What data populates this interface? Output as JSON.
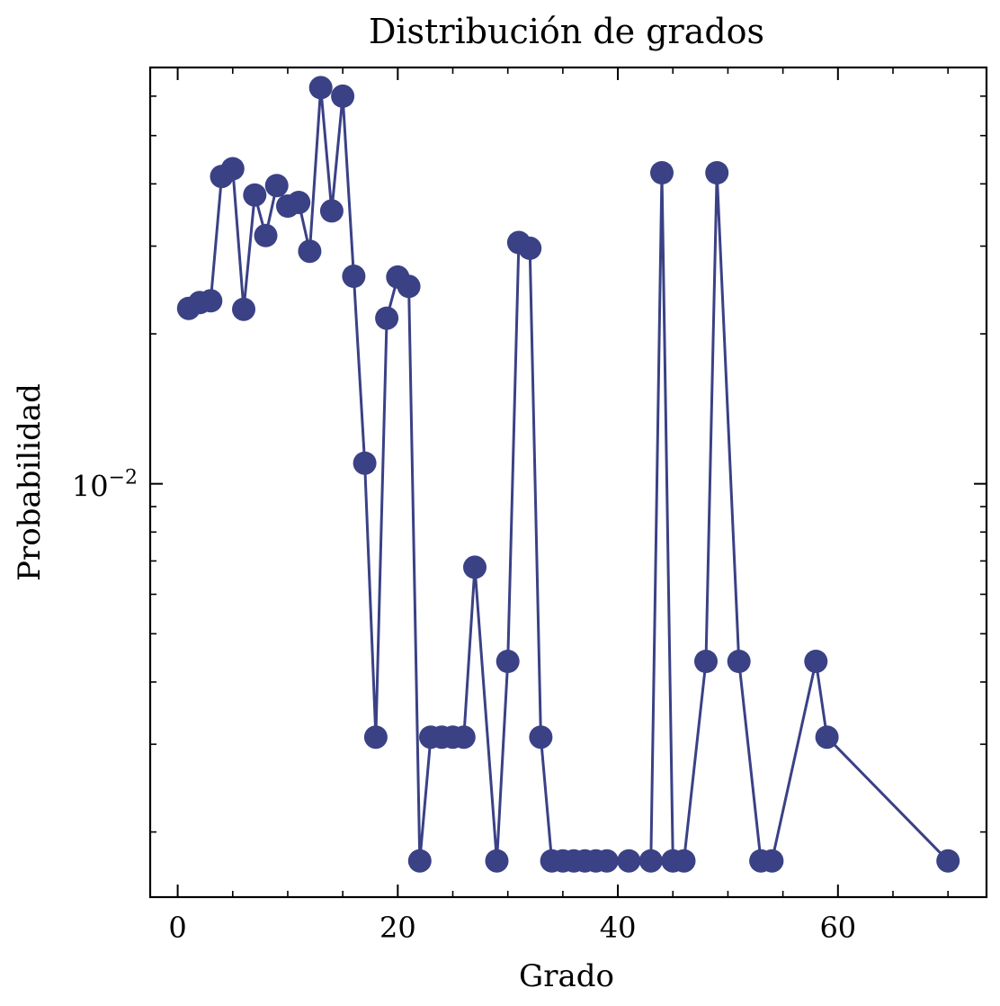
{
  "chart_data": {
    "type": "line",
    "title": "Distribución de grados",
    "xlabel": "Grado",
    "ylabel": "Probabilidad",
    "yscale": "log",
    "xlim": [
      -2.5,
      73.5
    ],
    "ylim": [
      0.00148,
      0.0685
    ],
    "xticks": [
      0,
      20,
      40,
      60
    ],
    "yticks_labeled": [
      {
        "value": 0.01,
        "base": "10",
        "exponent": "−2"
      }
    ],
    "color": "#3a4185",
    "marker": "circle",
    "grid": false,
    "x": [
      1,
      2,
      3,
      4,
      5,
      6,
      7,
      8,
      9,
      10,
      11,
      12,
      13,
      14,
      15,
      16,
      17,
      18,
      19,
      20,
      21,
      22,
      23,
      24,
      25,
      26,
      27,
      29,
      30,
      31,
      32,
      33,
      34,
      35,
      36,
      37,
      38,
      39,
      41,
      43,
      44,
      45,
      46,
      48,
      49,
      51,
      53,
      54,
      58,
      59,
      70
    ],
    "y": [
      0.0225,
      0.0231,
      0.0233,
      0.0414,
      0.0429,
      0.0224,
      0.038,
      0.0315,
      0.0397,
      0.0361,
      0.0367,
      0.0293,
      0.0624,
      0.0353,
      0.06,
      0.0261,
      0.011,
      0.0031,
      0.0215,
      0.026,
      0.0249,
      0.00175,
      0.0031,
      0.0031,
      0.0031,
      0.0031,
      0.0068,
      0.00175,
      0.0044,
      0.0305,
      0.0297,
      0.0031,
      0.00175,
      0.00175,
      0.00175,
      0.00175,
      0.00175,
      0.00175,
      0.00175,
      0.00175,
      0.0421,
      0.00175,
      0.00175,
      0.0044,
      0.0421,
      0.0044,
      0.00175,
      0.00175,
      0.0044,
      0.0031,
      0.00175
    ]
  }
}
